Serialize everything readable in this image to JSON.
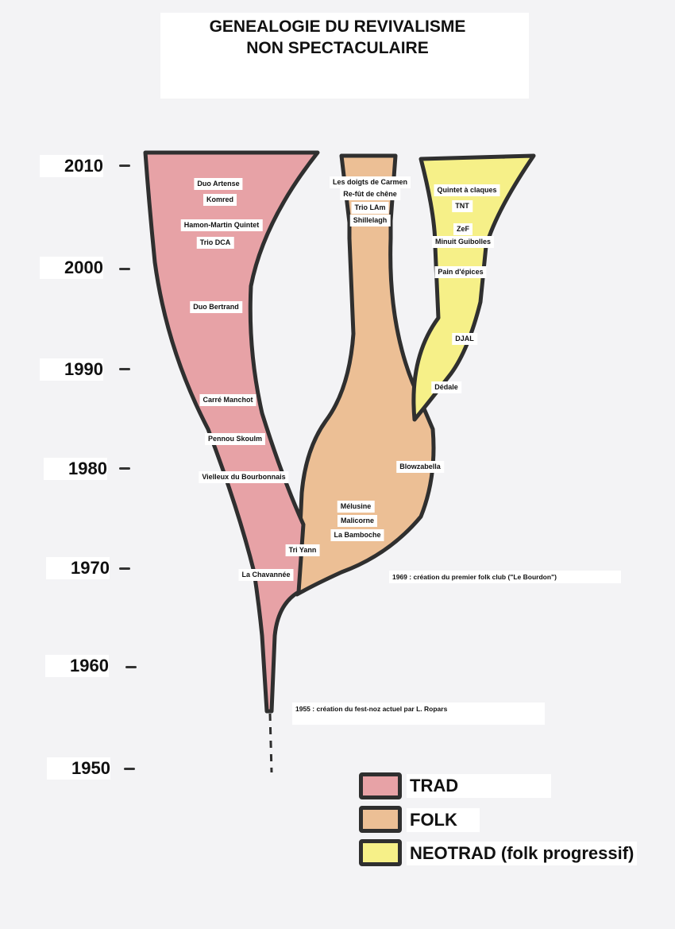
{
  "title": {
    "line1": "GENEALOGIE DU REVIVALISME",
    "line2": "NON SPECTACULAIRE"
  },
  "years": [
    "2010",
    "2000",
    "1990",
    "1980",
    "1970",
    "1960",
    "1950"
  ],
  "colors": {
    "trad": "#e7a2a6",
    "folk": "#ecbf95",
    "neotrad": "#f6f088",
    "outline": "#2f2f2f"
  },
  "groups": {
    "duo_artense": "Duo Artense",
    "komred": "Komred",
    "hamon_martin": "Hamon-Martin Quintet",
    "trio_dca": "Trio DCA",
    "duo_bertrand": "Duo Bertrand",
    "carre_manchot": "Carré Manchot",
    "pennou_skoulm": "Pennou Skoulm",
    "vielleux": "Vielleux du Bourbonnais",
    "tri_yann": "Tri Yann",
    "la_chavannee": "La Chavannée",
    "doigts_carmen": "Les doigts de Carmen",
    "re_fut": "Re-fût de chêne",
    "trio_lam": "Trio LAm",
    "shillelagh": "Shillelagh",
    "melusine": "Mélusine",
    "malicorne": "Malicorne",
    "la_bamboche": "La Bamboche",
    "blowzabella": "Blowzabella",
    "quintet_claques": "Quintet à claques",
    "tnt": "TNT",
    "zef": "ZeF",
    "minuit_guibolles": "Minuit Guibolles",
    "pain_epices": "Pain d'épices",
    "djal": "DJAL",
    "dedale": "Dédale"
  },
  "notes": {
    "folk_club": "1969 : création du premier folk club (\"Le Bourdon\")",
    "fest_noz": "1955 : création du fest-noz actuel par L. Ropars"
  },
  "legend": {
    "trad": "TRAD",
    "folk": "FOLK",
    "neotrad": "NEOTRAD (folk progressif)"
  }
}
